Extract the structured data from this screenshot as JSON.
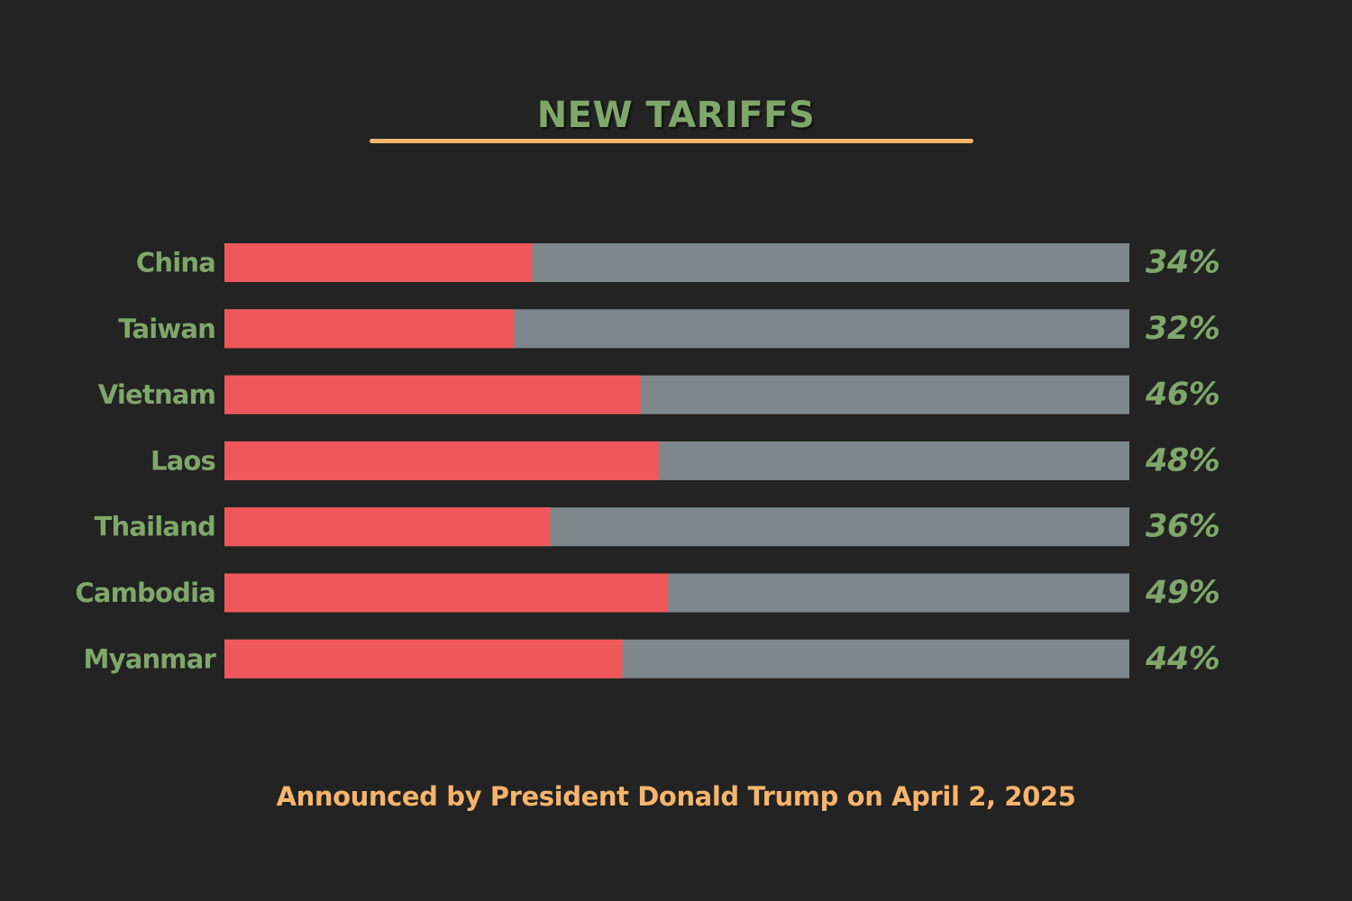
{
  "chart_data": {
    "type": "bar",
    "orientation": "horizontal",
    "title": "NEW TARIFFS",
    "footnote": "Announced by President Donald Trump on April 2, 2025",
    "categories": [
      "China",
      "Taiwan",
      "Vietnam",
      "Laos",
      "Thailand",
      "Cambodia",
      "Myanmar"
    ],
    "values": [
      34,
      32,
      46,
      48,
      36,
      49,
      44
    ],
    "value_labels": [
      "34%",
      "32%",
      "46%",
      "48%",
      "36%",
      "49%",
      "44%"
    ],
    "xlim": [
      0,
      100
    ],
    "grid": false,
    "legend": "none",
    "colors": {
      "background": "#232323",
      "bar_fill": "#ef585b",
      "bar_track": "#7e888c",
      "label": "#7fa76a",
      "accent": "#f7b46c"
    }
  }
}
